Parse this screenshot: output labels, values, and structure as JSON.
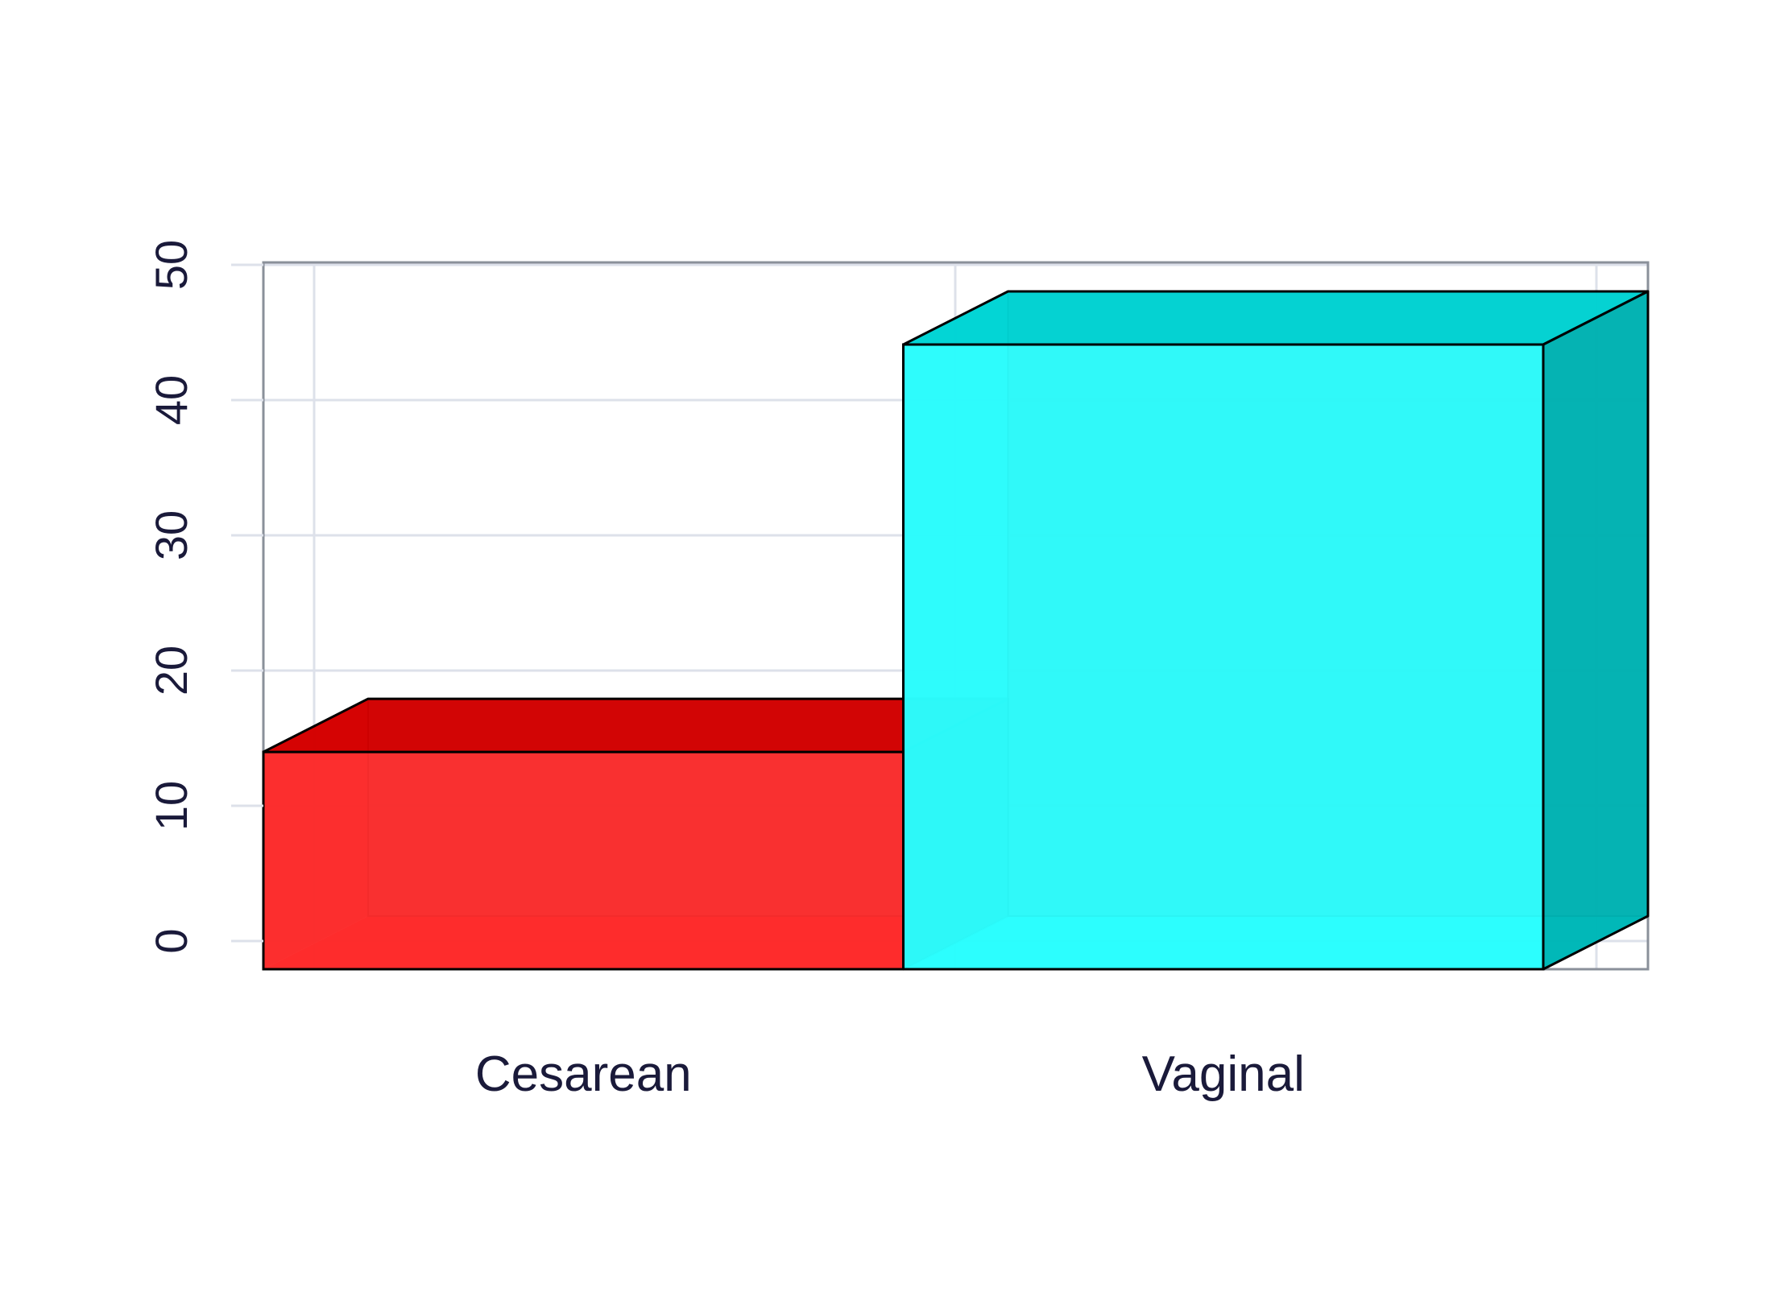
{
  "chart_data": {
    "type": "bar",
    "style": "3d",
    "categories": [
      "Cesarean",
      "Vaginal"
    ],
    "values": [
      14,
      44
    ],
    "colors": [
      "#ff0000",
      "#00ffff"
    ],
    "xlabel": "",
    "ylabel": "",
    "title": "",
    "ylim": [
      -2,
      50
    ],
    "yticks": [
      0,
      10,
      20,
      30,
      40,
      50
    ],
    "grid": true,
    "legend": "none"
  },
  "colors": {
    "text": "#1a1a3a",
    "grid": "#dde1ea",
    "frame": "#8a909a",
    "edge": "#000000"
  }
}
